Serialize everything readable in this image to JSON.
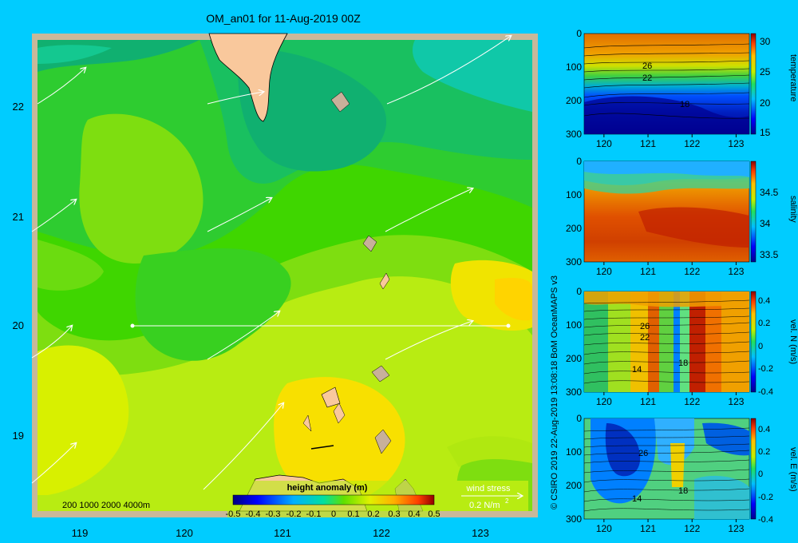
{
  "colors": {
    "background": "#00ccff",
    "land": "#f9c89c",
    "coast_shade": "#c8b09a",
    "map_frame": "#c8b89a",
    "contour": "#000000",
    "vector": "#ffffff"
  },
  "map": {
    "title": "OM_an01 for 11-Aug-2019 00Z",
    "x_ticks": [
      "119",
      "120",
      "121",
      "122",
      "123"
    ],
    "y_ticks": [
      "22",
      "21",
      "20",
      "19"
    ],
    "depth_scale_label": "200  1000  2000  4000m",
    "wind_stress_label": "wind stress",
    "wind_stress_unit": "0.2 N/m",
    "wind_stress_unit_sup": "2",
    "colorbar_title": "height anomaly  (m)",
    "colorbar_ticks": [
      "-0.5",
      "-0.4",
      "-0.3",
      "-0.2",
      "-0.1",
      "0",
      "0.1",
      "0.2",
      "0.3",
      "0.4",
      "0.5"
    ],
    "copyright": "© CSIRO 2019   22-Aug-2019 13:08:18 BoM OceanMAPS v3"
  },
  "chart_data": [
    {
      "type": "heatmap",
      "title": "OM_an01 for 11-Aug-2019 00Z",
      "x": [
        119,
        120,
        121,
        122,
        123
      ],
      "y": [
        22,
        21,
        20,
        19
      ],
      "xlim": [
        118.5,
        123.5
      ],
      "ylim": [
        18.3,
        22.7
      ],
      "colorbar_label": "height anomaly  (m)",
      "colorbar_range": [
        -0.5,
        0.5
      ],
      "transect_latitude": 20,
      "transect_lon_range": [
        119.5,
        123
      ]
    },
    {
      "type": "heatmap",
      "label": "temperature",
      "x": [
        120,
        121,
        122,
        123
      ],
      "y": [
        0,
        100,
        200,
        300
      ],
      "colorbar_ticks": [
        "30",
        "25",
        "20",
        "15"
      ],
      "colorbar_range": [
        15,
        31
      ],
      "contour_labels": [
        "26",
        "22",
        "18"
      ]
    },
    {
      "type": "heatmap",
      "label": "salinity",
      "x": [
        120,
        121,
        122,
        123
      ],
      "y": [
        0,
        100,
        200,
        300
      ],
      "colorbar_ticks": [
        "34.5",
        "34",
        "33.5"
      ],
      "colorbar_range": [
        33.4,
        34.9
      ]
    },
    {
      "type": "heatmap",
      "label": "vel. N  (m/s)",
      "x": [
        120,
        121,
        122,
        123
      ],
      "y": [
        0,
        100,
        200,
        300
      ],
      "colorbar_ticks": [
        "0.4",
        "0.2",
        "0",
        "-0.2",
        "-0.4"
      ],
      "colorbar_range": [
        -0.45,
        0.45
      ],
      "contour_labels": [
        "26",
        "22",
        "18",
        "14"
      ]
    },
    {
      "type": "heatmap",
      "label": "vel. E  (m/s)",
      "x": [
        120,
        121,
        122,
        123
      ],
      "y": [
        0,
        100,
        200,
        300
      ],
      "colorbar_ticks": [
        "0.4",
        "0.2",
        "0",
        "-0.2",
        "-0.4"
      ],
      "colorbar_range": [
        -0.45,
        0.45
      ],
      "contour_labels": [
        "26",
        "18",
        "14"
      ]
    }
  ]
}
